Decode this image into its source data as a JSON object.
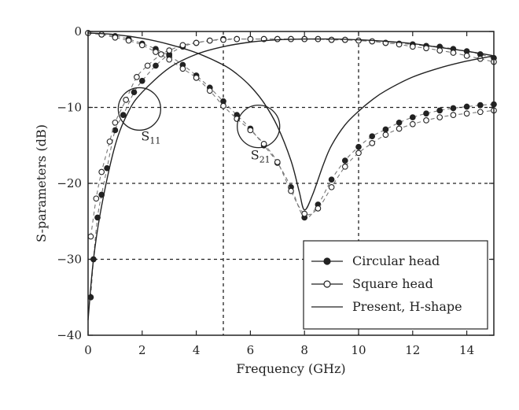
{
  "chart_data": {
    "type": "line",
    "xlabel": "Frequency (GHz)",
    "ylabel": "S-parameters (dB)",
    "xlim": [
      0,
      15
    ],
    "ylim": [
      -40,
      0
    ],
    "xticks": [
      "0",
      "2",
      "4",
      "6",
      "8",
      "10",
      "12",
      "14"
    ],
    "yticks": [
      "0",
      "−10",
      "−20",
      "−30",
      "−40"
    ],
    "grid": "dashed lines at x=5, x=10 and y=−10, −20, −30",
    "legend_position": "bottom-right",
    "annotations": [
      {
        "label": "S",
        "sub": "11",
        "circle_center": [
          1.9,
          -10.2
        ]
      },
      {
        "label": "S",
        "sub": "21",
        "circle_center": [
          6.3,
          -12.5
        ]
      }
    ],
    "series": [
      {
        "name": "Circular head",
        "parameter": "S11",
        "marker": "filled-circle",
        "x": [
          0.1,
          0.2,
          0.35,
          0.5,
          0.7,
          1.0,
          1.3,
          1.7,
          2.0,
          2.5,
          3.0,
          3.5,
          4.0,
          4.5,
          5.0,
          5.5,
          6.0,
          6.5,
          7.0,
          7.5,
          8.0,
          8.5,
          9.0,
          9.5,
          10.0,
          10.5,
          11.0,
          11.5,
          12.0,
          12.5,
          13.0,
          13.5,
          14.0,
          14.5,
          15.0
        ],
        "y": [
          -35.0,
          -30.0,
          -24.5,
          -21.5,
          -18.0,
          -13.0,
          -11.0,
          -8.0,
          -6.5,
          -4.5,
          -3.0,
          -2.0,
          -1.5,
          -1.2,
          -1.0,
          -1.0,
          -1.0,
          -1.0,
          -1.0,
          -1.0,
          -1.0,
          -1.0,
          -1.1,
          -1.1,
          -1.2,
          -1.3,
          -1.5,
          -1.6,
          -1.7,
          -1.9,
          -2.0,
          -2.3,
          -2.6,
          -3.0,
          -3.5
        ]
      },
      {
        "name": "Circular head",
        "parameter": "S21",
        "marker": "filled-circle",
        "x": [
          0,
          0.5,
          1.0,
          1.5,
          2.0,
          2.5,
          3.0,
          3.5,
          4.0,
          4.5,
          5.0,
          5.5,
          6.0,
          6.5,
          7.0,
          7.5,
          8.0,
          8.5,
          9.0,
          9.5,
          10.0,
          10.5,
          11.0,
          11.5,
          12.0,
          12.5,
          13.0,
          13.5,
          14.0,
          14.5,
          15.0
        ],
        "y": [
          -0.2,
          -0.4,
          -0.6,
          -1.0,
          -1.6,
          -2.3,
          -3.2,
          -4.4,
          -5.8,
          -7.4,
          -9.2,
          -11.0,
          -12.8,
          -15.0,
          -17.3,
          -20.5,
          -24.5,
          -22.8,
          -19.5,
          -17.0,
          -15.2,
          -13.8,
          -12.9,
          -12.0,
          -11.3,
          -10.8,
          -10.4,
          -10.1,
          -9.9,
          -9.7,
          -9.6
        ]
      },
      {
        "name": "Square head",
        "parameter": "S11",
        "marker": "open-circle",
        "x": [
          0.1,
          0.3,
          0.5,
          0.8,
          1.0,
          1.4,
          1.8,
          2.2,
          2.7,
          3.0,
          3.5,
          4.0,
          4.5,
          5.0,
          5.5,
          6.0,
          6.5,
          7.0,
          7.5,
          8.0,
          8.5,
          9.0,
          9.5,
          10.0,
          10.5,
          11.0,
          11.5,
          12.0,
          12.5,
          13.0,
          13.5,
          14.0,
          14.5,
          15.0
        ],
        "y": [
          -27.0,
          -22.0,
          -18.5,
          -14.5,
          -12.0,
          -9.0,
          -6.0,
          -4.5,
          -3.0,
          -2.5,
          -1.8,
          -1.5,
          -1.2,
          -1.1,
          -1.0,
          -1.0,
          -1.0,
          -1.0,
          -1.0,
          -1.0,
          -1.0,
          -1.1,
          -1.1,
          -1.2,
          -1.3,
          -1.5,
          -1.7,
          -2.0,
          -2.2,
          -2.5,
          -2.8,
          -3.2,
          -3.6,
          -4.0
        ]
      },
      {
        "name": "Square head",
        "parameter": "S21",
        "marker": "open-circle",
        "x": [
          0,
          0.5,
          1.0,
          1.5,
          2.0,
          2.5,
          3.0,
          3.5,
          4.0,
          4.5,
          5.0,
          5.5,
          6.0,
          6.5,
          7.0,
          7.5,
          8.0,
          8.5,
          9.0,
          9.5,
          10.0,
          10.5,
          11.0,
          11.5,
          12.0,
          12.5,
          13.0,
          13.5,
          14.0,
          14.5,
          15.0
        ],
        "y": [
          -0.2,
          -0.4,
          -0.8,
          -1.2,
          -1.8,
          -2.7,
          -3.7,
          -4.9,
          -6.1,
          -7.8,
          -9.8,
          -11.5,
          -13.0,
          -14.8,
          -17.2,
          -21.0,
          -24.0,
          -23.3,
          -20.5,
          -17.8,
          -16.0,
          -14.7,
          -13.6,
          -12.8,
          -12.2,
          -11.7,
          -11.3,
          -11.0,
          -10.8,
          -10.6,
          -10.4
        ]
      },
      {
        "name": "Present, H-shape",
        "parameter": "S11",
        "marker": "none",
        "x": [
          0,
          0.2,
          0.5,
          1.0,
          1.5,
          2.0,
          3.0,
          4.0,
          5.0,
          6.0,
          7.0,
          8.0,
          9.0,
          10.0,
          11.0,
          12.0,
          13.0,
          14.0,
          15.0
        ],
        "y": [
          -38.0,
          -30.0,
          -23.0,
          -15.0,
          -10.5,
          -8.0,
          -4.8,
          -3.0,
          -2.0,
          -1.4,
          -1.1,
          -1.0,
          -1.0,
          -1.1,
          -1.3,
          -1.6,
          -2.1,
          -2.6,
          -3.2
        ]
      },
      {
        "name": "Present, H-shape",
        "parameter": "S21",
        "marker": "none",
        "x": [
          0,
          1.0,
          2.0,
          3.0,
          4.0,
          5.0,
          5.5,
          6.0,
          6.5,
          7.0,
          7.5,
          7.8,
          8.0,
          8.3,
          8.7,
          9.0,
          9.5,
          10.0,
          10.5,
          11.0,
          12.0,
          13.0,
          14.0,
          15.0
        ],
        "y": [
          -0.2,
          -0.4,
          -0.9,
          -1.7,
          -2.8,
          -4.4,
          -5.6,
          -7.2,
          -9.4,
          -12.5,
          -17.0,
          -21.0,
          -23.5,
          -21.5,
          -17.5,
          -15.0,
          -12.3,
          -10.5,
          -9.0,
          -7.8,
          -6.0,
          -4.8,
          -3.9,
          -3.2
        ]
      }
    ]
  },
  "legend": {
    "items": [
      {
        "label": "Circular head",
        "marker": "filled-circle"
      },
      {
        "label": "Square head",
        "marker": "open-circle"
      },
      {
        "label": "Present, H-shape",
        "marker": "line"
      }
    ]
  },
  "colors": {
    "data": "#222222",
    "grid": "#222222",
    "background": "#ffffff"
  }
}
